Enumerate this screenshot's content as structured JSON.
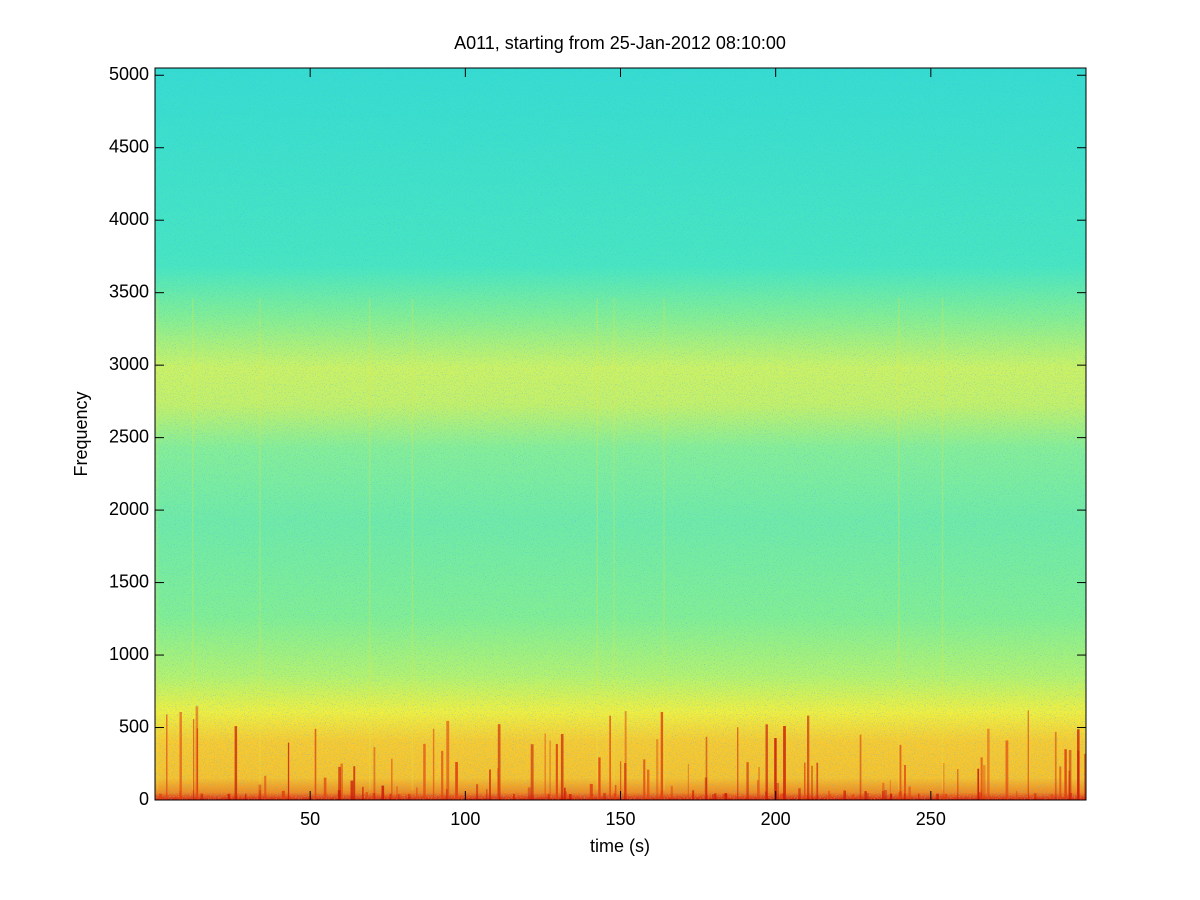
{
  "chart_data": {
    "type": "spectrogram",
    "title": "A011, starting from 25-Jan-2012 08:10:00",
    "x_label": "time (s)",
    "y_label": "Frequency",
    "xlim": [
      0,
      300
    ],
    "ylim": [
      0,
      5050
    ],
    "xticks": [
      50,
      100,
      150,
      200,
      250
    ],
    "yticks": [
      0,
      500,
      1000,
      1500,
      2000,
      2500,
      3000,
      3500,
      4000,
      4500,
      5000
    ]
  }
}
